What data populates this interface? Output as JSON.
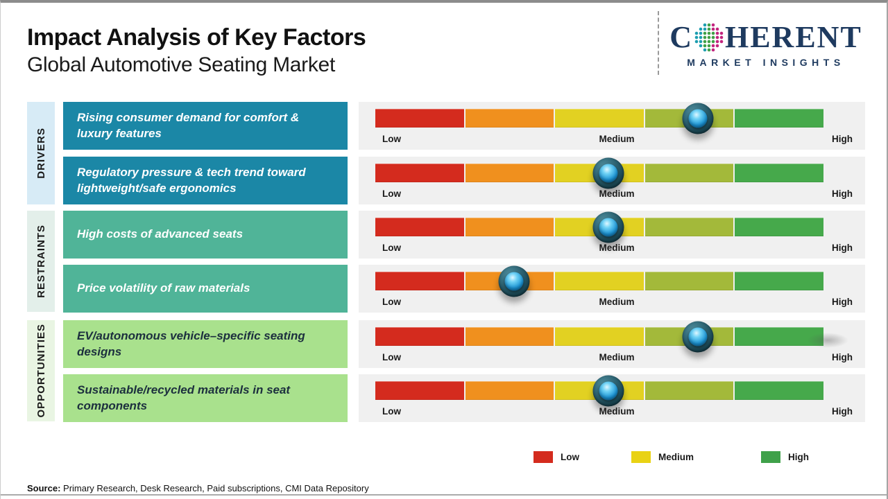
{
  "header": {
    "title": "Impact Analysis of Key Factors",
    "subtitle": "Global Automotive Seating Market",
    "logo": {
      "part1": "C",
      "part2": "HERENT",
      "sub": "MARKET INSIGHTS"
    }
  },
  "groups": [
    {
      "label": "DRIVERS"
    },
    {
      "label": "RESTRAINTS"
    },
    {
      "label": "OPPORTUNITIES"
    }
  ],
  "rows": [
    {
      "group": "Drivers",
      "text": "Rising consumer demand for comfort & luxury features",
      "impact_pct": 72,
      "impact_level": "Medium-High"
    },
    {
      "group": "Drivers",
      "text": "Regulatory pressure & tech trend toward lightweight/safe ergonomics",
      "impact_pct": 52,
      "impact_level": "Medium"
    },
    {
      "group": "Restraints",
      "text": "High costs of advanced seats",
      "impact_pct": 52,
      "impact_level": "Medium"
    },
    {
      "group": "Restraints",
      "text": "Price volatility of raw materials",
      "impact_pct": 31,
      "impact_level": "Low-Medium"
    },
    {
      "group": "Opportunities",
      "text": "EV/autonomous vehicle–specific seating designs",
      "impact_pct": 72,
      "impact_level": "Medium-High"
    },
    {
      "group": "Opportunities",
      "text": "Sustainable/recycled materials in seat components",
      "impact_pct": 52,
      "impact_level": "Medium"
    }
  ],
  "gauge": {
    "scale": {
      "low": "Low",
      "medium": "Medium",
      "high": "High"
    }
  },
  "legend": {
    "items": [
      {
        "label": "Low",
        "color": "#d42b1e"
      },
      {
        "label": "Medium",
        "color": "#e9d214"
      },
      {
        "label": "High",
        "color": "#3fa14a"
      }
    ]
  },
  "source": {
    "prefix": "Source:",
    "text": " Primary Research, Desk Research, Paid subscriptions, CMI Data Repository"
  },
  "colors": {
    "drivers_card": "#1b87a6",
    "drivers_tab": "#d7ebf6",
    "restraints_card": "#50b498",
    "restraints_tab": "#e3efea",
    "opportunities_card": "#a9e18d",
    "opportunities_tab": "#e9f5e3",
    "gauge_panel": "#f0f0f0",
    "gauge_segments": [
      "#d42b1e",
      "#f0901e",
      "#e2d122",
      "#a3b93a",
      "#46a94b"
    ],
    "knob_outer": "#1e4f5c",
    "knob_inner": "#1b93d4",
    "logo_navy": "#1e3a5f"
  },
  "chart_data": {
    "type": "table",
    "title": "Impact Analysis of Key Factors",
    "subtitle": "Global Automotive Seating Market",
    "scale": {
      "min_label": "Low",
      "mid_label": "Medium",
      "max_label": "High",
      "range_pct": [
        0,
        100
      ]
    },
    "rows": [
      {
        "group": "Drivers",
        "factor": "Rising consumer demand for comfort & luxury features",
        "impact_pct": 72,
        "impact_level": "Medium-High"
      },
      {
        "group": "Drivers",
        "factor": "Regulatory pressure & tech trend toward lightweight/safe ergonomics",
        "impact_pct": 52,
        "impact_level": "Medium"
      },
      {
        "group": "Restraints",
        "factor": "High costs of advanced seats",
        "impact_pct": 52,
        "impact_level": "Medium"
      },
      {
        "group": "Restraints",
        "factor": "Price volatility of raw materials",
        "impact_pct": 31,
        "impact_level": "Low-Medium"
      },
      {
        "group": "Opportunities",
        "factor": "EV/autonomous vehicle–specific seating designs",
        "impact_pct": 72,
        "impact_level": "Medium-High"
      },
      {
        "group": "Opportunities",
        "factor": "Sustainable/recycled materials in seat components",
        "impact_pct": 52,
        "impact_level": "Medium"
      }
    ]
  }
}
